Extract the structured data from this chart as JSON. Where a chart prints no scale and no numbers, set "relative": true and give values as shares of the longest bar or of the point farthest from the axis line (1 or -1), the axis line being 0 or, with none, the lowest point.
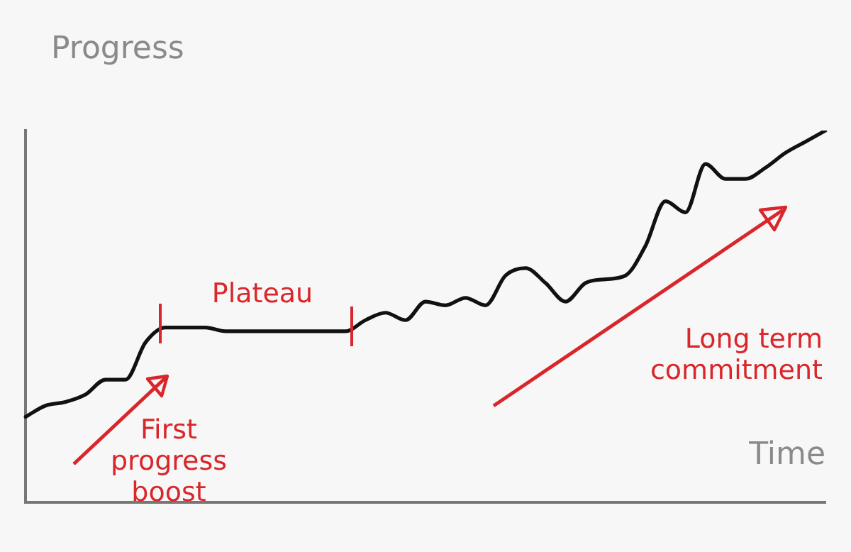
{
  "chart_data": {
    "type": "line",
    "relative": true,
    "xlabel": "Time",
    "ylabel": "Progress",
    "tick_labels": false,
    "marker": "none",
    "line_style": "solid",
    "categories": [
      null,
      null,
      null,
      null,
      null,
      null,
      null,
      null,
      null,
      null,
      null,
      null,
      null,
      null,
      null,
      null,
      null,
      null,
      null,
      null,
      null,
      null,
      null,
      null,
      null,
      null,
      null,
      null,
      null,
      null,
      null,
      null,
      null,
      null,
      null,
      null,
      null,
      null,
      null,
      null,
      null
    ],
    "series": [
      {
        "color": "#111111",
        "values": [
          0.23,
          0.26,
          0.27,
          0.29,
          0.33,
          0.33,
          0.43,
          0.47,
          0.47,
          0.47,
          0.46,
          0.46,
          0.46,
          0.46,
          0.46,
          0.46,
          0.46,
          0.49,
          0.51,
          0.49,
          0.54,
          0.53,
          0.55,
          0.53,
          0.61,
          0.63,
          0.59,
          0.54,
          0.59,
          0.6,
          0.61,
          0.69,
          0.81,
          0.78,
          0.91,
          0.87,
          0.87,
          0.9,
          0.94,
          0.97,
          1
        ]
      }
    ],
    "annotations": [
      "Plateau",
      "First progress boost",
      "Long term commitment"
    ]
  }
}
